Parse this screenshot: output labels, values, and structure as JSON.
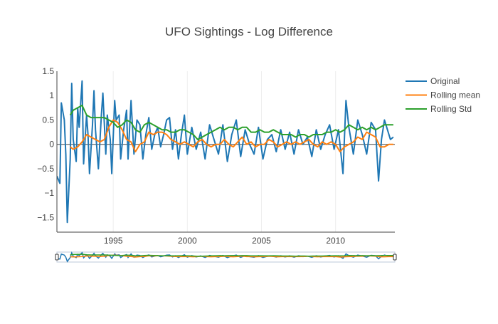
{
  "chart_data": {
    "type": "line",
    "title": "UFO Sightings - Log Difference",
    "xlabel": "",
    "ylabel": "",
    "xlim": [
      1991.2,
      2014.0
    ],
    "ylim": [
      -1.8,
      1.5
    ],
    "grid": true,
    "legend_position": "top-right",
    "range_slider": true,
    "x_ticks": [
      1995,
      2000,
      2005,
      2010
    ],
    "x_tick_labels": [
      "1995",
      "2000",
      "2005",
      "2010"
    ],
    "y_ticks": [
      -1.5,
      -1,
      -0.5,
      0,
      0.5,
      1,
      1.5
    ],
    "y_tick_labels": [
      "−1.5",
      "−1",
      "−0.5",
      "0",
      "0.5",
      "1",
      "1.5"
    ],
    "series": [
      {
        "name": "Original",
        "color": "#1f77b4",
        "x": [
          1991.2,
          1991.4,
          1991.5,
          1991.7,
          1991.8,
          1991.9,
          1992.1,
          1992.2,
          1992.3,
          1992.5,
          1992.6,
          1992.7,
          1992.9,
          1993.0,
          1993.2,
          1993.3,
          1993.4,
          1993.6,
          1993.7,
          1993.8,
          1994.0,
          1994.2,
          1994.3,
          1994.5,
          1994.6,
          1994.8,
          1994.9,
          1995.1,
          1995.2,
          1995.4,
          1995.5,
          1995.7,
          1995.9,
          1996.0,
          1996.2,
          1996.4,
          1996.6,
          1996.8,
          1997.0,
          1997.2,
          1997.4,
          1997.6,
          1997.8,
          1998.0,
          1998.2,
          1998.4,
          1998.6,
          1998.8,
          1999.0,
          1999.2,
          1999.4,
          1999.6,
          1999.8,
          2000.0,
          2000.3,
          2000.6,
          2000.9,
          2001.2,
          2001.5,
          2001.8,
          2002.1,
          2002.4,
          2002.7,
          2003.0,
          2003.3,
          2003.6,
          2003.9,
          2004.2,
          2004.5,
          2004.8,
          2005.1,
          2005.4,
          2005.7,
          2006.0,
          2006.3,
          2006.6,
          2006.9,
          2007.2,
          2007.5,
          2007.8,
          2008.1,
          2008.4,
          2008.7,
          2009.0,
          2009.3,
          2009.6,
          2009.9,
          2010.2,
          2010.5,
          2010.7,
          2010.9,
          2011.2,
          2011.5,
          2011.8,
          2012.1,
          2012.4,
          2012.7,
          2012.9,
          2013.1,
          2013.3,
          2013.5,
          2013.7,
          2013.9
        ],
        "values": [
          -0.65,
          -0.8,
          0.85,
          0.5,
          -0.2,
          -1.6,
          -0.3,
          1.25,
          0.1,
          -0.35,
          0.75,
          0.35,
          1.3,
          -0.4,
          0.6,
          0.2,
          -0.6,
          0.4,
          1.1,
          0.3,
          -0.5,
          0.6,
          1.05,
          -0.2,
          0.6,
          0.1,
          -0.6,
          0.9,
          0.5,
          0.6,
          -0.3,
          0.3,
          0.7,
          -0.3,
          0.9,
          -0.2,
          0.5,
          0.4,
          -0.3,
          0.2,
          0.55,
          -0.1,
          0.2,
          0.35,
          -0.05,
          0.2,
          0.5,
          0.55,
          -0.1,
          0.3,
          -0.3,
          0.2,
          0.6,
          -0.2,
          0.35,
          -0.1,
          0.25,
          -0.3,
          0.4,
          0.1,
          -0.2,
          0.4,
          -0.35,
          0.2,
          0.5,
          -0.25,
          0.3,
          0.0,
          -0.2,
          0.35,
          -0.3,
          0.1,
          0.2,
          -0.15,
          0.3,
          -0.1,
          0.25,
          -0.2,
          0.3,
          0.0,
          0.15,
          -0.25,
          0.3,
          -0.1,
          0.2,
          0.4,
          -0.1,
          0.3,
          -0.6,
          0.9,
          0.35,
          -0.2,
          0.5,
          0.2,
          -0.2,
          0.45,
          0.3,
          -0.75,
          0.1,
          0.5,
          0.3,
          0.1,
          0.15
        ]
      },
      {
        "name": "Rolling mean",
        "color": "#ff7f0e",
        "x": [
          1992.1,
          1992.3,
          1992.6,
          1992.9,
          1993.2,
          1993.5,
          1993.8,
          1994.1,
          1994.4,
          1994.7,
          1995.0,
          1995.3,
          1995.6,
          1995.9,
          1996.2,
          1996.5,
          1996.8,
          1997.1,
          1997.4,
          1997.7,
          1998.0,
          1998.3,
          1998.6,
          1998.9,
          1999.2,
          1999.5,
          1999.8,
          2000.1,
          2000.4,
          2000.7,
          2001.0,
          2001.3,
          2001.6,
          2001.9,
          2002.2,
          2002.5,
          2002.8,
          2003.1,
          2003.4,
          2003.7,
          2004.0,
          2004.3,
          2004.6,
          2004.9,
          2005.2,
          2005.5,
          2005.8,
          2006.1,
          2006.4,
          2006.7,
          2007.0,
          2007.3,
          2007.6,
          2007.9,
          2008.2,
          2008.5,
          2008.8,
          2009.1,
          2009.4,
          2009.7,
          2010.0,
          2010.3,
          2010.6,
          2010.9,
          2011.2,
          2011.5,
          2011.8,
          2012.1,
          2012.4,
          2012.7,
          2013.0,
          2013.3,
          2013.6,
          2013.9
        ],
        "values": [
          -0.05,
          -0.1,
          -0.05,
          0.05,
          0.2,
          0.15,
          0.1,
          0.05,
          0.1,
          0.35,
          0.5,
          0.45,
          0.3,
          0.1,
          0.05,
          -0.15,
          0.0,
          0.05,
          0.25,
          0.2,
          0.25,
          0.25,
          0.2,
          0.1,
          0.05,
          0.0,
          0.05,
          0.0,
          -0.05,
          0.05,
          0.1,
          0.0,
          -0.05,
          0.0,
          0.0,
          0.1,
          0.0,
          -0.05,
          0.05,
          0.15,
          0.0,
          0.05,
          -0.05,
          0.0,
          0.0,
          0.1,
          0.05,
          -0.05,
          0.0,
          0.05,
          0.0,
          0.05,
          0.0,
          0.05,
          0.1,
          0.0,
          -0.05,
          0.05,
          0.0,
          0.05,
          0.0,
          -0.15,
          -0.05,
          0.0,
          0.05,
          0.15,
          0.1,
          0.25,
          0.2,
          0.15,
          -0.05,
          -0.05,
          0.0,
          0.0
        ]
      },
      {
        "name": "Rolling Std",
        "color": "#2ca02c",
        "x": [
          1992.1,
          1992.3,
          1992.6,
          1992.9,
          1993.2,
          1993.5,
          1993.8,
          1994.1,
          1994.4,
          1994.7,
          1995.0,
          1995.3,
          1995.6,
          1995.9,
          1996.2,
          1996.5,
          1996.8,
          1997.1,
          1997.4,
          1997.7,
          1998.0,
          1998.3,
          1998.6,
          1998.9,
          1999.2,
          1999.5,
          1999.8,
          2000.1,
          2000.4,
          2000.7,
          2001.0,
          2001.3,
          2001.6,
          2001.9,
          2002.2,
          2002.5,
          2002.8,
          2003.1,
          2003.4,
          2003.7,
          2004.0,
          2004.3,
          2004.6,
          2004.9,
          2005.2,
          2005.5,
          2005.8,
          2006.1,
          2006.4,
          2006.7,
          2007.0,
          2007.3,
          2007.6,
          2007.9,
          2008.2,
          2008.5,
          2008.8,
          2009.1,
          2009.4,
          2009.7,
          2010.0,
          2010.3,
          2010.6,
          2010.9,
          2011.2,
          2011.5,
          2011.8,
          2012.1,
          2012.4,
          2012.7,
          2013.0,
          2013.3,
          2013.6,
          2013.9
        ],
        "values": [
          0.6,
          0.7,
          0.75,
          0.8,
          0.6,
          0.55,
          0.55,
          0.55,
          0.55,
          0.5,
          0.45,
          0.35,
          0.4,
          0.5,
          0.45,
          0.3,
          0.25,
          0.4,
          0.45,
          0.4,
          0.35,
          0.3,
          0.3,
          0.25,
          0.25,
          0.3,
          0.3,
          0.25,
          0.2,
          0.1,
          0.15,
          0.2,
          0.25,
          0.3,
          0.35,
          0.3,
          0.35,
          0.35,
          0.3,
          0.35,
          0.35,
          0.25,
          0.25,
          0.3,
          0.25,
          0.25,
          0.3,
          0.25,
          0.2,
          0.2,
          0.2,
          0.15,
          0.2,
          0.2,
          0.15,
          0.2,
          0.2,
          0.2,
          0.25,
          0.25,
          0.3,
          0.25,
          0.3,
          0.4,
          0.35,
          0.3,
          0.35,
          0.3,
          0.35,
          0.3,
          0.35,
          0.4,
          0.4,
          0.4
        ]
      }
    ]
  }
}
